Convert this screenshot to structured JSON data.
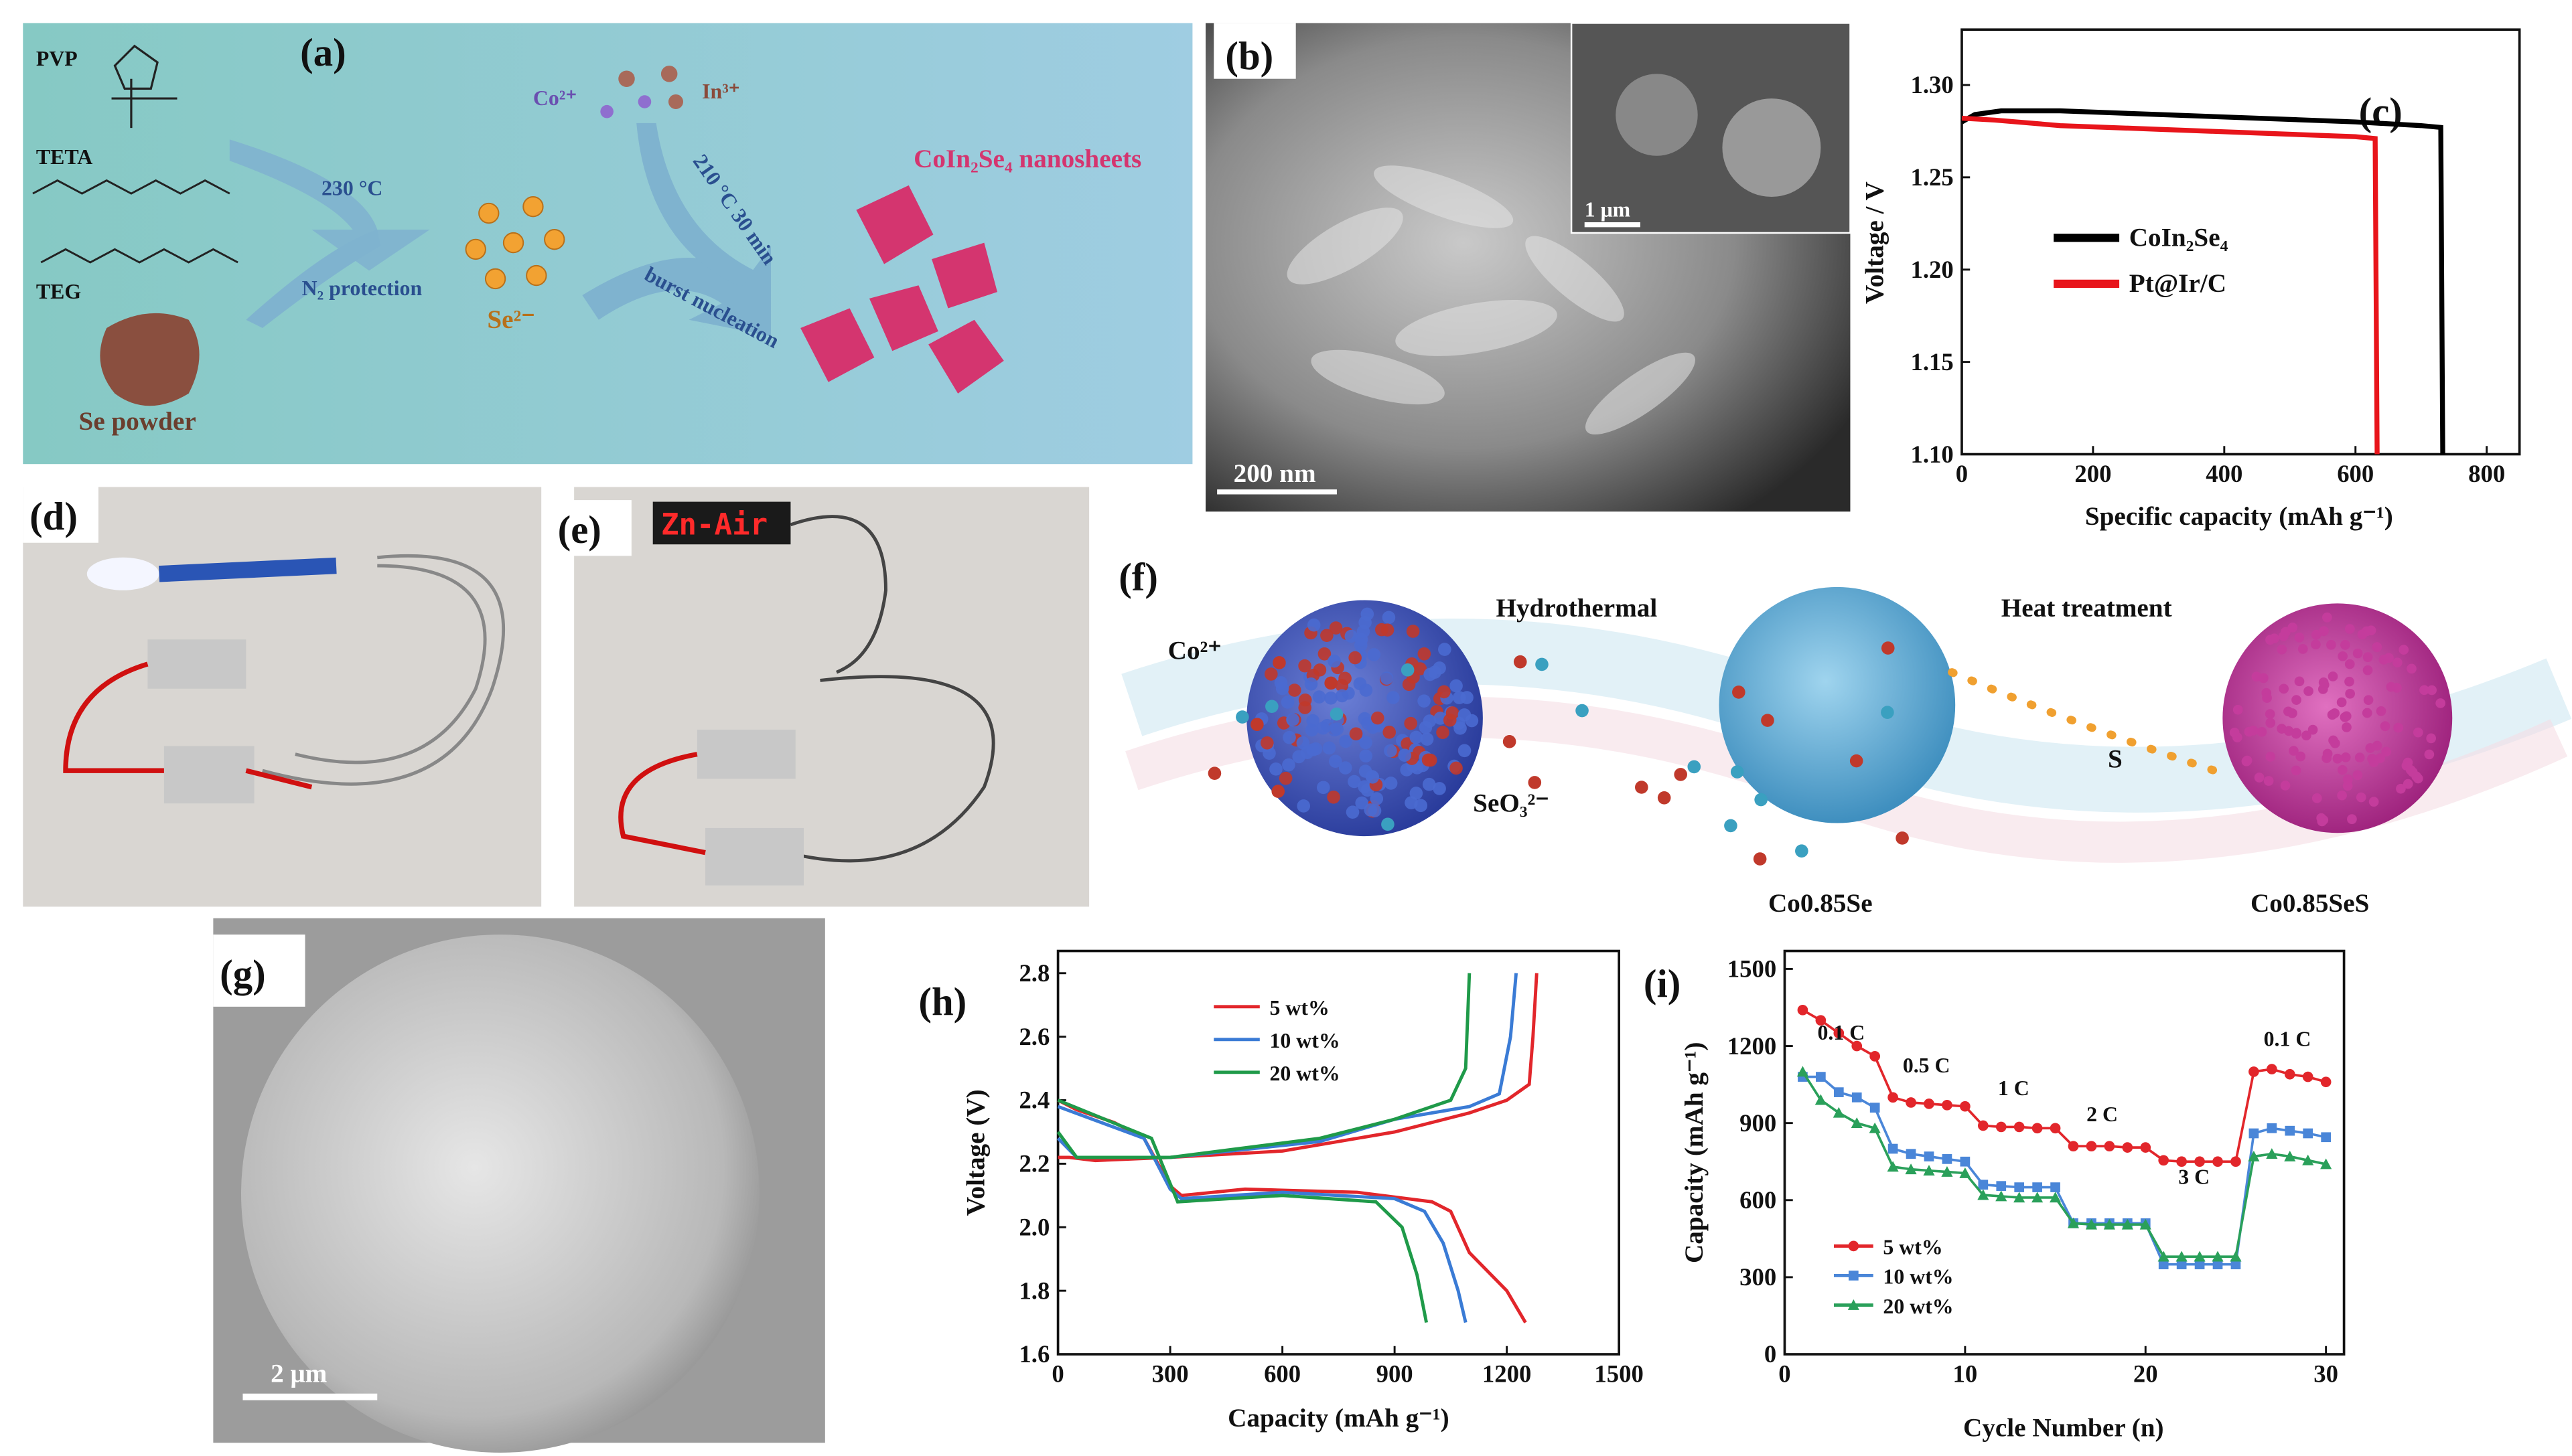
{
  "panels": {
    "a": {
      "label": "(a)",
      "pvp": "PVP",
      "teta": "TETA",
      "teg": "TEG",
      "se_powder": "Se powder",
      "temp1": "230 °C",
      "n2": "N₂ protection",
      "se": "Se²⁻",
      "co": "Co²⁺",
      "in": "In³⁺",
      "temp2": "210 °C 30 min",
      "burst": "burst nucleation",
      "product": "CoIn₂Se₄ nanosheets"
    },
    "b": {
      "label": "(b)",
      "inset_scale": "1 μm",
      "scale": "200 nm"
    },
    "d": {
      "label": "(d)"
    },
    "e": {
      "label": "(e)",
      "sign": "Zn-Air"
    },
    "f": {
      "label": "(f)",
      "co": "Co²⁺",
      "hydrothermal": "Hydrothermal",
      "heat": "Heat treatment",
      "seo3": "SeO₃²⁻",
      "s": "S",
      "product1": "Co0.85Se",
      "product2": "Co0.85SeS"
    },
    "g": {
      "label": "(g)",
      "scale": "2 μm"
    }
  },
  "chart_data": [
    {
      "type": "line",
      "label": "(c)",
      "xlabel": "Specific capacity (mAh g⁻¹)",
      "ylabel": "Voltage / V",
      "xlim": [
        0,
        850
      ],
      "ylim": [
        1.1,
        1.33
      ],
      "xticks": [
        0,
        200,
        400,
        600,
        800
      ],
      "yticks": [
        {
          "value": 1.1,
          "label": "1.10"
        },
        1.15,
        {
          "value": 1.2,
          "label": "1.20"
        },
        1.25,
        {
          "value": 1.3,
          "label": "1.30"
        }
      ],
      "series": [
        {
          "name": "CoIn₂Se₄",
          "color": "#000000",
          "x": [
            0,
            20,
            60,
            150,
            300,
            450,
            600,
            700,
            730,
            733
          ],
          "values": [
            1.28,
            1.284,
            1.286,
            1.286,
            1.284,
            1.282,
            1.28,
            1.278,
            1.277,
            1.1
          ]
        },
        {
          "name": "Pt@Ir/C",
          "color": "#e8151b",
          "x": [
            0,
            50,
            150,
            300,
            450,
            600,
            630,
            633
          ],
          "values": [
            1.282,
            1.281,
            1.278,
            1.276,
            1.274,
            1.272,
            1.271,
            1.1
          ]
        }
      ]
    },
    {
      "type": "line",
      "label": "(h)",
      "xlabel": "Capacity (mAh g⁻¹)",
      "ylabel": "Voltage (V)",
      "xlim": [
        0,
        1500
      ],
      "ylim": [
        1.6,
        2.87
      ],
      "xticks": [
        0,
        300,
        600,
        900,
        1200,
        1500
      ],
      "yticks": [
        1.6,
        1.8,
        {
          "value": 2,
          "label": "2.0"
        },
        2.2,
        2.4,
        2.6,
        2.8
      ],
      "series": [
        {
          "name": "5 wt%",
          "color": "#e2262b",
          "x": [
            0,
            50,
            150,
            230,
            300,
            330,
            500,
            800,
            1000,
            1050,
            1100,
            1200,
            1250,
            null,
            0,
            30,
            100,
            300,
            600,
            900,
            1100,
            1200,
            1260,
            1270,
            1280
          ],
          "values": [
            2.4,
            2.37,
            2.33,
            2.28,
            2.13,
            2.1,
            2.12,
            2.11,
            2.08,
            2.05,
            1.92,
            1.8,
            1.7,
            null,
            2.22,
            2.22,
            2.21,
            2.22,
            2.24,
            2.3,
            2.36,
            2.4,
            2.45,
            2.6,
            2.8
          ]
        },
        {
          "name": "10 wt%",
          "color": "#3a7bd5",
          "x": [
            0,
            230,
            300,
            330,
            600,
            900,
            980,
            1030,
            1070,
            1090,
            null,
            0,
            50,
            300,
            700,
            900,
            1100,
            1180,
            1210,
            1225
          ],
          "values": [
            2.38,
            2.28,
            2.12,
            2.09,
            2.11,
            2.09,
            2.05,
            1.95,
            1.8,
            1.7,
            null,
            2.28,
            2.22,
            2.22,
            2.27,
            2.34,
            2.38,
            2.42,
            2.6,
            2.8
          ]
        },
        {
          "name": "20 wt%",
          "color": "#1f9a49",
          "x": [
            0,
            250,
            320,
            600,
            850,
            920,
            960,
            985,
            null,
            0,
            50,
            300,
            700,
            900,
            1050,
            1090,
            1100
          ],
          "values": [
            2.4,
            2.28,
            2.08,
            2.1,
            2.08,
            2,
            1.85,
            1.7,
            null,
            2.3,
            2.22,
            2.22,
            2.28,
            2.34,
            2.4,
            2.5,
            2.8
          ]
        }
      ]
    },
    {
      "type": "line",
      "label": "(i)",
      "xlabel": "Cycle Number (n)",
      "ylabel": "Capacity (mAh g⁻¹)",
      "xlim": [
        0,
        31
      ],
      "ylim": [
        0,
        1570
      ],
      "xticks": [
        0,
        10,
        20,
        30
      ],
      "yticks": [
        0,
        300,
        600,
        900,
        1200,
        1500
      ],
      "x": [
        1,
        2,
        3,
        4,
        5,
        6,
        7,
        8,
        9,
        10,
        11,
        12,
        13,
        14,
        15,
        16,
        17,
        18,
        19,
        20,
        21,
        22,
        23,
        24,
        25,
        26,
        27,
        28,
        29,
        30
      ],
      "annotations": [
        "0.1 C",
        "0.5 C",
        "1 C",
        "2 C",
        "3 C",
        "0.1 C"
      ],
      "series": [
        {
          "name": "5 wt%",
          "color": "#e2262b",
          "marker": "circle",
          "values": [
            1340,
            1300,
            1250,
            1200,
            1160,
            1000,
            980,
            975,
            970,
            965,
            890,
            885,
            885,
            880,
            880,
            810,
            810,
            810,
            805,
            805,
            755,
            750,
            750,
            750,
            750,
            1100,
            1110,
            1090,
            1080,
            1060
          ]
        },
        {
          "name": "10 wt%",
          "color": "#4a86d8",
          "marker": "square",
          "values": [
            1080,
            1080,
            1020,
            1000,
            960,
            800,
            780,
            770,
            760,
            750,
            660,
            655,
            650,
            650,
            650,
            510,
            510,
            510,
            510,
            510,
            350,
            350,
            350,
            350,
            350,
            860,
            880,
            870,
            860,
            845
          ]
        },
        {
          "name": "20 wt%",
          "color": "#2aa05a",
          "marker": "triangle",
          "values": [
            1100,
            990,
            940,
            900,
            880,
            730,
            720,
            715,
            710,
            705,
            620,
            615,
            610,
            610,
            610,
            510,
            505,
            505,
            505,
            505,
            380,
            380,
            380,
            380,
            380,
            770,
            780,
            770,
            755,
            740
          ]
        }
      ]
    }
  ]
}
